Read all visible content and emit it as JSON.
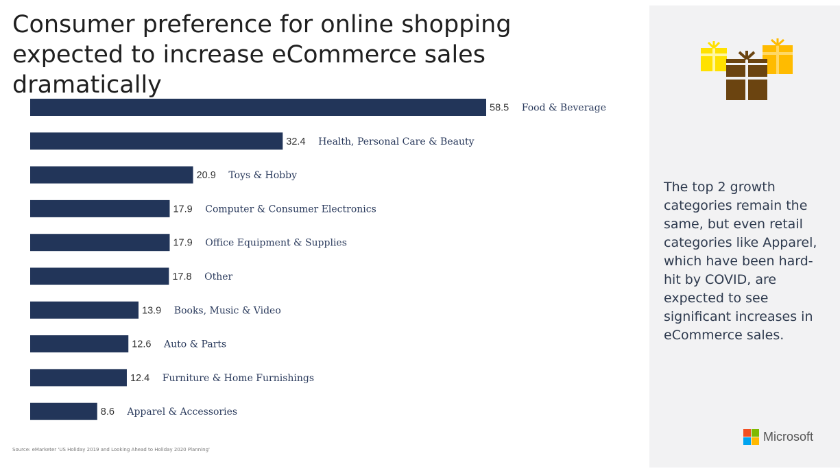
{
  "title": "Consumer preference for online shopping expected to increase eCommerce sales dramatically",
  "chart_data": {
    "type": "bar",
    "orientation": "horizontal",
    "categories": [
      "Food & Beverage",
      "Health, Personal Care & Beauty",
      "Toys & Hobby",
      "Computer & Consumer Electronics",
      "Office Equipment & Supplies",
      "Other",
      "Books, Music & Video",
      "Auto & Parts",
      "Furniture & Home Furnishings",
      "Apparel & Accessories"
    ],
    "values": [
      58.5,
      32.4,
      20.9,
      17.9,
      17.9,
      17.8,
      13.9,
      12.6,
      12.4,
      8.6
    ],
    "value_labels": [
      "58.5",
      "32.4",
      "20.9",
      "17.9",
      "17.9",
      "17.8",
      "13.9",
      "12.6",
      "12.4",
      "8.6"
    ],
    "xlim": [
      0,
      58.5
    ],
    "grid": false,
    "legend": "none",
    "bar_color": "#223559"
  },
  "sidebar": {
    "text": "The top 2 growth categories remain the same, but even retail categories like Apparel, which have been hard-hit by COVID, are expected to see significant increases in eCommerce sales.",
    "icon": "gifts-icon",
    "logo_text": "Microsoft",
    "logo_colors": [
      "#f25022",
      "#7fba00",
      "#00a4ef",
      "#ffb900"
    ]
  },
  "source": "Source: eMarketer 'US Holiday 2019 and Looking Ahead to Holiday 2020 Planning'"
}
